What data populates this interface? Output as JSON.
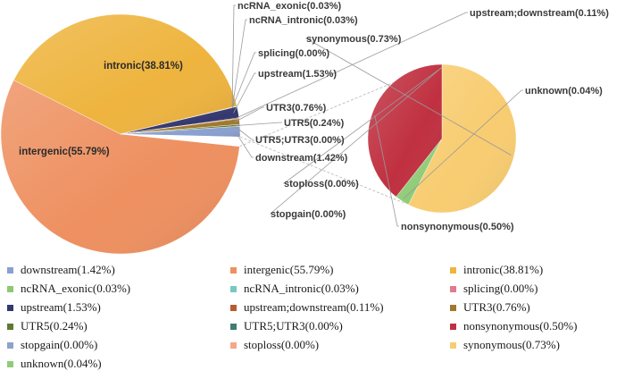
{
  "colors": {
    "downstream": "#8aa0d0",
    "intergenic": "#ee9060",
    "intronic": "#eeb43e",
    "ncRNA_exonic": "#8fc870",
    "ncRNA_intronic": "#78c8c0",
    "splicing": "#e27a8e",
    "upstream": "#34386e",
    "upstream_downstream": "#b85c30",
    "UTR3": "#a0782e",
    "UTR5": "#5e7a30",
    "UTR5_UTR3": "#3f7c72",
    "nonsynonymous": "#c03040",
    "stopgain": "#8fa2cc",
    "stoploss": "#f4a888",
    "synonymous": "#f8cc70",
    "unknown": "#90cc78"
  },
  "chart_data": [
    {
      "type": "pie",
      "slices": [
        {
          "key": "intergenic",
          "label": "intergenic(55.79%)",
          "value": 55.79
        },
        {
          "key": "intronic",
          "label": "intronic(38.81%)",
          "value": 38.81
        },
        {
          "key": "ncRNA_exonic",
          "label": "ncRNA_exonic(0.03%)",
          "value": 0.03
        },
        {
          "key": "ncRNA_intronic",
          "label": "ncRNA_intronic(0.03%)",
          "value": 0.03
        },
        {
          "key": "splicing",
          "label": "splicing(0.00%)",
          "value": 0.0
        },
        {
          "key": "upstream",
          "label": "upstream(1.53%)",
          "value": 1.53
        },
        {
          "key": "upstream_downstream",
          "label": "upstream;downstream(0.11%)",
          "value": 0.11
        },
        {
          "key": "UTR3",
          "label": "UTR3(0.76%)",
          "value": 0.76
        },
        {
          "key": "UTR5",
          "label": "UTR5(0.24%)",
          "value": 0.24
        },
        {
          "key": "UTR5_UTR3",
          "label": "UTR5;UTR3(0.00%)",
          "value": 0.0
        },
        {
          "key": "downstream",
          "label": "downstream(1.42%)",
          "value": 1.42
        },
        {
          "key": "exonic",
          "label": "",
          "value": 1.28
        }
      ]
    },
    {
      "type": "pie",
      "slices": [
        {
          "key": "synonymous",
          "label": "synonymous(0.73%)",
          "value": 0.73
        },
        {
          "key": "unknown",
          "label": "unknown(0.04%)",
          "value": 0.04
        },
        {
          "key": "nonsynonymous",
          "label": "nonsynonymous(0.50%)",
          "value": 0.5
        },
        {
          "key": "stopgain",
          "label": "stopgain(0.00%)",
          "value": 0.0
        },
        {
          "key": "stoploss",
          "label": "stoploss(0.00%)",
          "value": 0.0
        }
      ]
    }
  ],
  "legend": [
    {
      "key": "downstream",
      "label": "downstream(1.42%)"
    },
    {
      "key": "intergenic",
      "label": "intergenic(55.79%)"
    },
    {
      "key": "intronic",
      "label": "intronic(38.81%)"
    },
    {
      "key": "ncRNA_exonic",
      "label": "ncRNA_exonic(0.03%)"
    },
    {
      "key": "ncRNA_intronic",
      "label": "ncRNA_intronic(0.03%)"
    },
    {
      "key": "splicing",
      "label": "splicing(0.00%)"
    },
    {
      "key": "upstream",
      "label": "upstream(1.53%)"
    },
    {
      "key": "upstream_downstream",
      "label": "upstream;downstream(0.11%)"
    },
    {
      "key": "UTR3",
      "label": "UTR3(0.76%)"
    },
    {
      "key": "UTR5",
      "label": "UTR5(0.24%)"
    },
    {
      "key": "UTR5_UTR3",
      "label": "UTR5;UTR3(0.00%)"
    },
    {
      "key": "nonsynonymous",
      "label": "nonsynonymous(0.50%)"
    },
    {
      "key": "stopgain",
      "label": "stopgain(0.00%)"
    },
    {
      "key": "stoploss",
      "label": "stoploss(0.00%)"
    },
    {
      "key": "synonymous",
      "label": "synonymous(0.73%)"
    },
    {
      "key": "unknown",
      "label": "unknown(0.04%)"
    }
  ]
}
